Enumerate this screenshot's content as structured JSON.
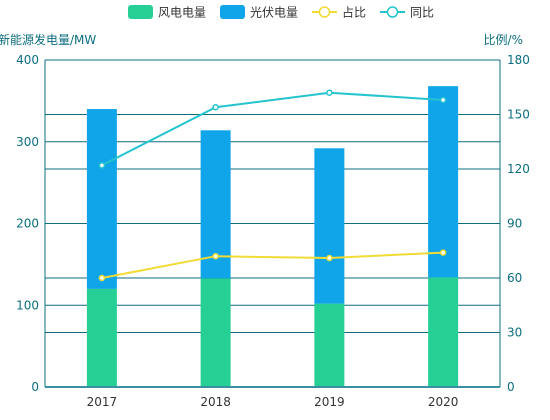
{
  "chart_data": {
    "type": "bar",
    "categories": [
      "2017",
      "2018",
      "2019",
      "2020"
    ],
    "series": [
      {
        "name": "风电电量",
        "kind": "bar",
        "stack": "power",
        "axis": "left",
        "color": "#26cf94",
        "values": [
          120,
          133,
          102,
          134
        ]
      },
      {
        "name": "光伏电量",
        "kind": "bar",
        "stack": "power",
        "axis": "left",
        "color": "#10a4e8",
        "values": [
          220,
          181,
          190,
          234
        ]
      },
      {
        "name": "占比",
        "kind": "line",
        "axis": "right",
        "color": "#f0dc35",
        "values": [
          60,
          72,
          71,
          74
        ]
      },
      {
        "name": "同比",
        "kind": "line",
        "axis": "right",
        "color": "#24c4cf",
        "values": [
          122,
          154,
          162,
          158
        ]
      }
    ],
    "ylabel": "新能源发电量/MW",
    "ylabel_right": "比例/%",
    "ylim": [
      0,
      400
    ],
    "ylim_right": [
      0,
      180
    ],
    "yticks": [
      "0",
      "100",
      "200",
      "300",
      "400"
    ],
    "yticks_right": [
      "0",
      "30",
      "60",
      "90",
      "120",
      "150",
      "180"
    ],
    "legend_position": "top-center",
    "grid": true,
    "colors": {
      "axis": "#0e6e80",
      "label": "#0e6e80",
      "tick": "#333333"
    }
  }
}
